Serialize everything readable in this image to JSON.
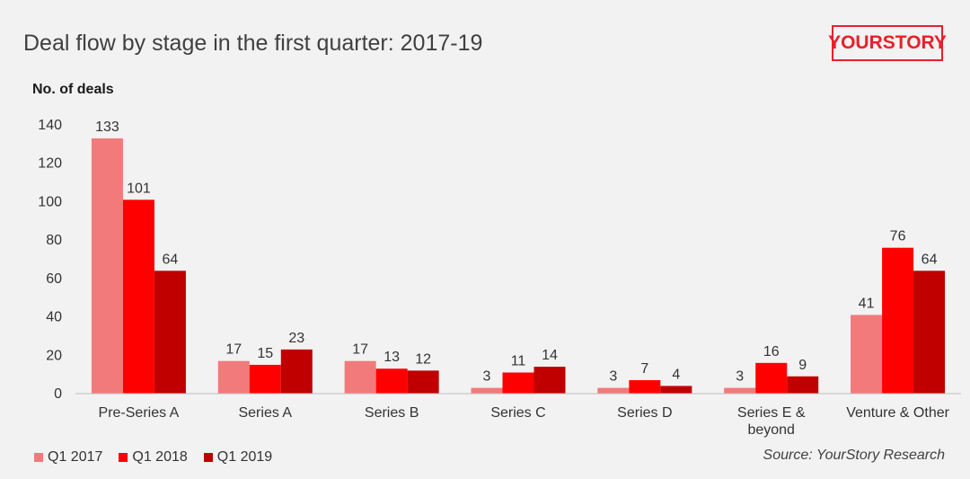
{
  "title": "Deal flow by stage in the first quarter: 2017-19",
  "logo": "YOURSTORY",
  "source": "Source: YourStory Research",
  "colors": {
    "q1_2017": "#f27a7a",
    "q1_2018": "#ff0000",
    "q1_2019": "#c00000",
    "axis": "#bfbfbf",
    "text": "#333333"
  },
  "chart_data": {
    "type": "bar",
    "title": "Deal flow by stage in the first quarter: 2017-19",
    "xlabel": "",
    "ylabel": "No. of deals",
    "ylim": [
      0,
      140
    ],
    "yticks": [
      0,
      20,
      40,
      60,
      80,
      100,
      120,
      140
    ],
    "grid": false,
    "legend_position": "bottom-left",
    "categories": [
      [
        "Pre-Series A"
      ],
      [
        "Series A"
      ],
      [
        "Series B"
      ],
      [
        "Series C"
      ],
      [
        "Series D"
      ],
      [
        "Series E &",
        "beyond"
      ],
      [
        "Venture & Other"
      ]
    ],
    "series": [
      {
        "name": "Q1 2017",
        "color": "#f27a7a",
        "values": [
          133,
          17,
          17,
          3,
          3,
          3,
          41
        ]
      },
      {
        "name": "Q1 2018",
        "color": "#ff0000",
        "values": [
          101,
          15,
          13,
          11,
          7,
          16,
          76
        ]
      },
      {
        "name": "Q1 2019",
        "color": "#c00000",
        "values": [
          64,
          23,
          12,
          14,
          4,
          9,
          64
        ]
      }
    ]
  }
}
